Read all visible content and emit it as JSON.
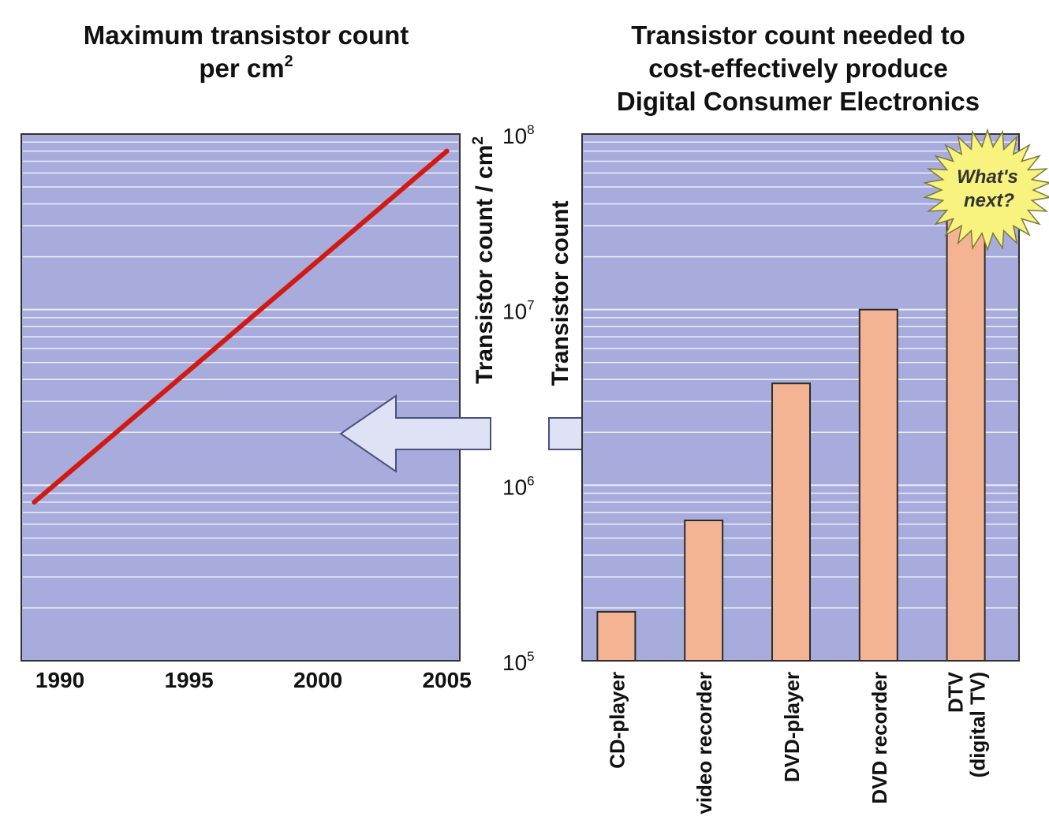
{
  "chart_data": [
    {
      "type": "line",
      "title_lines": [
        "Maximum transistor count",
        "per cm"
      ],
      "title_sup": "2",
      "x": [
        1989,
        2005
      ],
      "y": [
        800000,
        80000000
      ],
      "xlim": [
        1988.5,
        2005.5
      ],
      "xticks": [
        1990,
        1995,
        2000,
        2005
      ],
      "ylabel": "Transistor count / cm",
      "ylabel_sup": "2",
      "yscale": "log",
      "ylim": [
        100000,
        100000000
      ],
      "grid": true,
      "line_color": "#d21a12"
    },
    {
      "type": "bar",
      "title_lines": [
        "Transistor count needed to",
        "cost-effectively produce",
        "Digital Consumer Electronics"
      ],
      "categories": [
        [
          "CD-player"
        ],
        [
          "video recorder"
        ],
        [
          "DVD-player"
        ],
        [
          "DVD recorder"
        ],
        [
          "DTV",
          "(digital TV)"
        ]
      ],
      "values": [
        190000,
        630000,
        3800000,
        10000000,
        33000000
      ],
      "ylabel": "Transistor count",
      "yscale": "log",
      "ylim": [
        100000,
        100000000
      ],
      "ytick_exponents": [
        "8",
        "7",
        "6",
        "5"
      ],
      "ytick_base": "10",
      "bar_color": "#f4b493",
      "callout_lines": [
        "What's",
        "next?"
      ]
    }
  ],
  "colors": {
    "plot_bg": "#a7acdc",
    "grid_line": "#eceefb",
    "arrow_fill": "#dfe2f4",
    "arrow_stroke": "#4a4f7e",
    "burst_fill": "#f8f27e",
    "burst_stroke": "#7a7a3a"
  }
}
